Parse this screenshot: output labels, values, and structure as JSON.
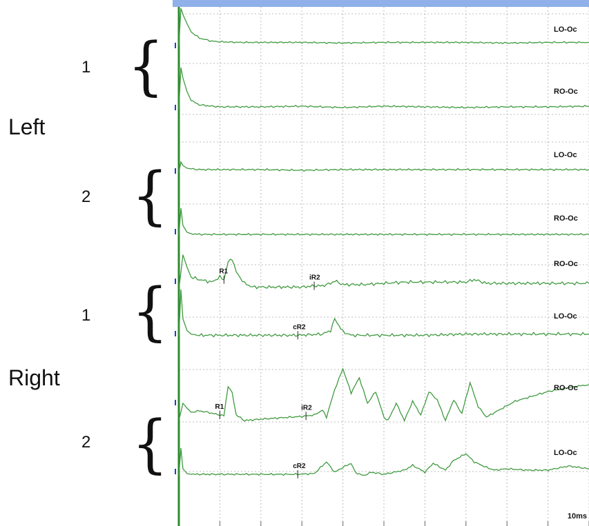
{
  "groups": [
    {
      "label": "Left",
      "trials": [
        "1",
        "2"
      ]
    },
    {
      "label": "Right",
      "trials": [
        "1",
        "2"
      ]
    }
  ],
  "colors": {
    "trace": "#3f9a3f",
    "grid": "#bcbcbc",
    "stim_line": "#2e8b2e",
    "baseline_tick": "#1f3fd0",
    "title_bar": "#8fb0e8",
    "text": "#111111"
  },
  "chart_data": {
    "type": "line",
    "title": "",
    "xlabel": "",
    "ylabel": "",
    "x_unit": "ms",
    "x_range": [
      0,
      100
    ],
    "scale_label": "10ms",
    "grid": true,
    "channels": [
      {
        "label": "LO-Oc",
        "group": "Left",
        "trial": "1",
        "markers": [],
        "x": [
          0,
          0.5,
          1,
          2,
          3,
          5,
          8,
          10,
          15,
          20,
          30,
          40,
          50,
          60,
          70,
          80,
          90,
          100
        ],
        "y": [
          0,
          60,
          50,
          35,
          22,
          12,
          7,
          6,
          5,
          5,
          5,
          4,
          5,
          5,
          5,
          4,
          5,
          5
        ]
      },
      {
        "label": "RO-Oc",
        "group": "Left",
        "trial": "1",
        "markers": [],
        "x": [
          0,
          0.5,
          1,
          2,
          3,
          5,
          8,
          10,
          15,
          20,
          30,
          40,
          50,
          60,
          70,
          80,
          90,
          100
        ],
        "y": [
          0,
          60,
          45,
          25,
          12,
          6,
          4,
          3,
          3,
          3,
          4,
          2,
          4,
          3,
          2,
          3,
          3,
          4
        ]
      },
      {
        "label": "LO-Oc",
        "group": "Left",
        "trial": "2",
        "markers": [],
        "x": [
          0,
          0.5,
          1,
          2,
          3,
          5,
          10,
          20,
          30,
          40,
          50,
          60,
          70,
          80,
          90,
          100
        ],
        "y": [
          0,
          15,
          10,
          6,
          5,
          4,
          4,
          4,
          3,
          4,
          4,
          4,
          4,
          4,
          4,
          4
        ]
      },
      {
        "label": "RO-Oc",
        "group": "Left",
        "trial": "2",
        "markers": [],
        "x": [
          0,
          0.5,
          1,
          2,
          3,
          5,
          10,
          20,
          30,
          40,
          50,
          60,
          70,
          80,
          90,
          100
        ],
        "y": [
          0,
          40,
          15,
          5,
          3,
          2,
          2,
          2,
          2,
          2,
          2,
          2,
          2,
          2,
          2,
          2
        ]
      },
      {
        "label": "RO-Oc",
        "group": "Right",
        "trial": "1",
        "markers": [
          {
            "label": "R1",
            "x": 11
          },
          {
            "label": "iR2",
            "x": 33
          }
        ],
        "x": [
          0,
          1,
          2,
          3,
          5,
          8,
          10,
          11,
          12,
          13,
          14,
          16,
          18,
          20,
          25,
          30,
          33,
          35,
          37,
          38,
          40,
          45,
          50,
          55,
          60,
          65,
          70,
          72,
          75,
          80,
          90,
          100
        ],
        "y": [
          0,
          28,
          18,
          10,
          8,
          6,
          10,
          8,
          22,
          25,
          14,
          5,
          2,
          2,
          2,
          2,
          3,
          3,
          5,
          7,
          4,
          4,
          5,
          6,
          6,
          6,
          6,
          8,
          5,
          5,
          5,
          5
        ]
      },
      {
        "label": "LO-Oc",
        "group": "Right",
        "trial": "1",
        "markers": [
          {
            "label": "cR2",
            "x": 29
          }
        ],
        "x": [
          0,
          0.5,
          1,
          2,
          3,
          5,
          10,
          20,
          29,
          35,
          37,
          38,
          40,
          42,
          45,
          50,
          60,
          70,
          80,
          90,
          100
        ],
        "y": [
          0,
          40,
          15,
          5,
          2,
          1,
          1,
          1,
          1,
          2,
          5,
          15,
          4,
          1,
          1,
          1,
          1,
          2,
          2,
          2,
          2
        ]
      },
      {
        "label": "RO-Oc",
        "group": "Right",
        "trial": "2",
        "markers": [
          {
            "label": "R1",
            "x": 10
          },
          {
            "label": "iR2",
            "x": 31
          }
        ],
        "x": [
          0,
          1,
          2,
          3,
          5,
          7,
          10,
          11,
          12,
          13,
          14,
          16,
          20,
          25,
          30,
          33,
          35,
          36,
          38,
          40,
          42,
          44,
          46,
          48,
          50,
          51,
          53,
          55,
          57,
          59,
          61,
          63,
          65,
          67,
          69,
          71,
          73,
          75,
          78,
          82,
          86,
          90,
          95,
          100
        ],
        "y": [
          0,
          25,
          18,
          12,
          14,
          12,
          8,
          7,
          50,
          40,
          8,
          0,
          2,
          4,
          6,
          8,
          15,
          5,
          45,
          75,
          40,
          62,
          25,
          42,
          5,
          0,
          25,
          0,
          28,
          8,
          42,
          30,
          0,
          30,
          10,
          55,
          20,
          5,
          15,
          28,
          35,
          42,
          48,
          52
        ]
      },
      {
        "label": "LO-Oc",
        "group": "Right",
        "trial": "2",
        "markers": [
          {
            "label": "cR2",
            "x": 29
          }
        ],
        "x": [
          0,
          0.5,
          1,
          2,
          3,
          5,
          10,
          20,
          29,
          33,
          36,
          38,
          40,
          42,
          43,
          45,
          47,
          50,
          55,
          57,
          60,
          62,
          65,
          67,
          70,
          72,
          75,
          77,
          80,
          85,
          90,
          95,
          100
        ],
        "y": [
          0,
          40,
          10,
          3,
          2,
          2,
          2,
          2,
          2,
          3,
          20,
          5,
          12,
          18,
          5,
          0,
          5,
          2,
          8,
          15,
          5,
          18,
          8,
          22,
          32,
          20,
          12,
          8,
          10,
          8,
          8,
          14,
          10
        ]
      }
    ]
  }
}
